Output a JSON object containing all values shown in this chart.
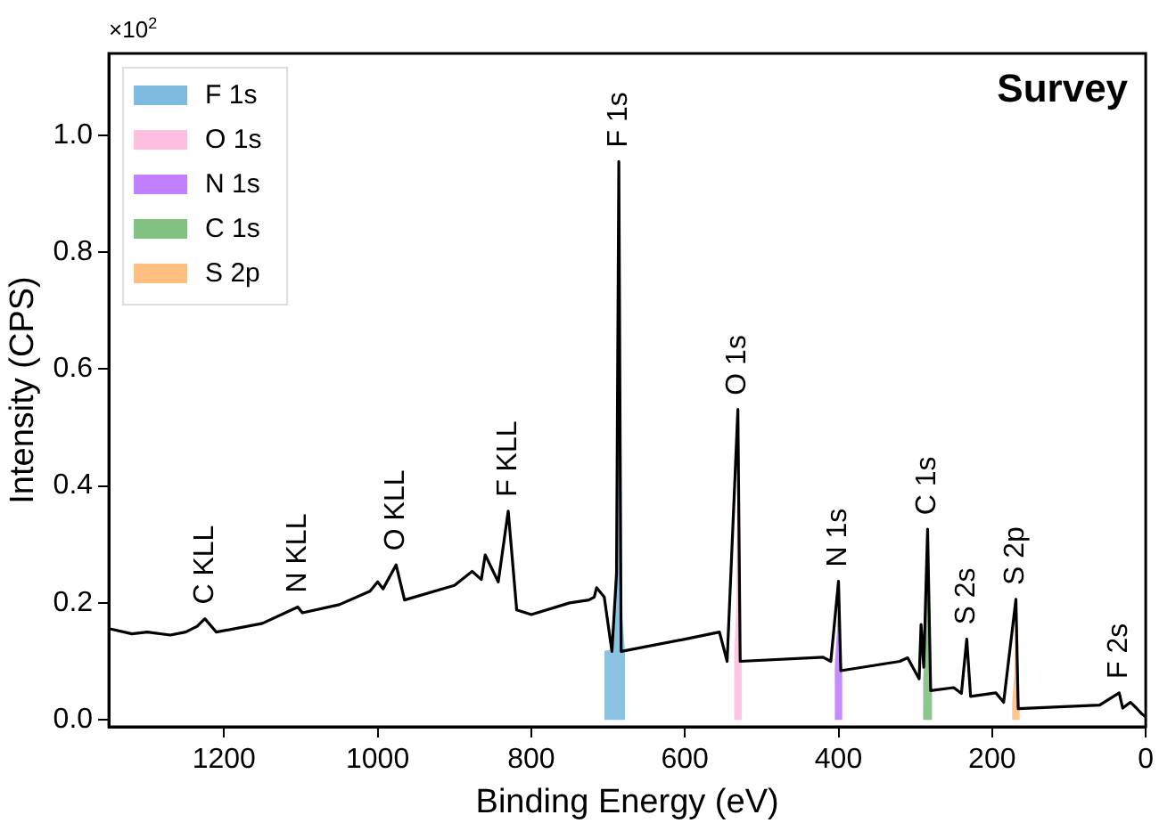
{
  "chart_data": {
    "type": "line",
    "title": "Survey",
    "xlabel": "Binding Energy (eV)",
    "ylabel": "Intensity (CPS)",
    "annotations": [
      "×10$^{2}$",
      {
        "text": "C KLL",
        "x": 1225,
        "y": 0.173
      },
      {
        "text": "N KLL",
        "x": 1104,
        "y": 0.193
      },
      {
        "text": "O KLL",
        "x": 976,
        "y": 0.265
      },
      {
        "text": "F KLL",
        "x": 830,
        "y": 0.357
      },
      {
        "text": "F 1s",
        "x": 686,
        "y": 0.955
      },
      {
        "text": "O 1s",
        "x": 531,
        "y": 0.531
      },
      {
        "text": "N 1s",
        "x": 400,
        "y": 0.237
      },
      {
        "text": "C 1s",
        "x": 284,
        "y": 0.326
      },
      {
        "text": "S 2s",
        "x": 233,
        "y": 0.138
      },
      {
        "text": "S 2p",
        "x": 169,
        "y": 0.206
      },
      {
        "text": "F 2s",
        "x": 34.5,
        "y": 0.046
      }
    ],
    "xlim": [
      1350,
      0
    ],
    "xticks": [
      1200,
      1000,
      800,
      600,
      400,
      200,
      0
    ],
    "ylim": [
      -0.012,
      1.14
    ],
    "yticks": [
      {
        "value": 0,
        "label": "0.0"
      },
      {
        "value": 0.2,
        "label": "0.2"
      },
      {
        "value": 0.4,
        "label": "0.4"
      },
      {
        "value": 0.6,
        "label": "0.6"
      },
      {
        "value": 0.8,
        "label": "0.8"
      },
      {
        "value": 1,
        "label": "1.0"
      }
    ],
    "grid": false,
    "legend": "top left",
    "marker": "none",
    "line_style": "solid",
    "series": [
      {
        "color": "#000000",
        "x": [
          1350,
          1320,
          1300,
          1270,
          1250,
          1235,
          1225,
          1210,
          1150,
          1104,
          1098,
          1050,
          1010,
          1000,
          993,
          976,
          965,
          900,
          877,
          865,
          860,
          843,
          830,
          819,
          800,
          750,
          725,
          718,
          715,
          705,
          695,
          689,
          686,
          683,
          600,
          555,
          545,
          531,
          528,
          420,
          410,
          400,
          397,
          320,
          310,
          295,
          292.5,
          289,
          284,
          280,
          250,
          240,
          233,
          228,
          195,
          185,
          169,
          166,
          60,
          34.5,
          30,
          20,
          12,
          5,
          0
        ],
        "values": [
          0.156,
          0.147,
          0.15,
          0.145,
          0.15,
          0.16,
          0.173,
          0.15,
          0.165,
          0.193,
          0.183,
          0.197,
          0.22,
          0.236,
          0.224,
          0.265,
          0.205,
          0.23,
          0.254,
          0.24,
          0.282,
          0.236,
          0.357,
          0.188,
          0.18,
          0.2,
          0.205,
          0.21,
          0.226,
          0.21,
          0.117,
          0.25,
          0.955,
          0.117,
          0.138,
          0.15,
          0.1,
          0.531,
          0.1,
          0.107,
          0.1,
          0.237,
          0.084,
          0.1,
          0.106,
          0.07,
          0.163,
          0.09,
          0.326,
          0.05,
          0.055,
          0.045,
          0.138,
          0.04,
          0.046,
          0.03,
          0.206,
          0.019,
          0.025,
          0.046,
          0.02,
          0.03,
          0.02,
          0.01,
          0.005
        ]
      },
      {
        "type": "area",
        "name": "F 1s",
        "color": "#7fbbdf",
        "x": [
          705,
          695,
          689,
          686,
          683,
          678
        ],
        "values": [
          0.118,
          0.12,
          0.25,
          0.955,
          0.2,
          0.117
        ]
      },
      {
        "type": "area",
        "name": "O 1s",
        "color": "#ffbfe0",
        "x": [
          536,
          533,
          531,
          529,
          526
        ],
        "values": [
          0.1,
          0.2,
          0.531,
          0.15,
          0.1
        ]
      },
      {
        "type": "area",
        "name": "N 1s",
        "color": "#c080ff",
        "x": [
          405,
          402,
          400,
          398,
          395
        ],
        "values": [
          0.09,
          0.15,
          0.237,
          0.12,
          0.085
        ]
      },
      {
        "type": "area",
        "name": "C 1s",
        "color": "#80c080",
        "x": [
          290,
          287,
          284,
          281,
          278
        ],
        "values": [
          0.07,
          0.12,
          0.326,
          0.1,
          0.05
        ]
      },
      {
        "type": "area",
        "name": "S 2p",
        "color": "#ffbf80",
        "x": [
          174,
          171,
          169,
          167,
          164
        ],
        "values": [
          0.03,
          0.08,
          0.206,
          0.05,
          0.019
        ]
      }
    ]
  }
}
